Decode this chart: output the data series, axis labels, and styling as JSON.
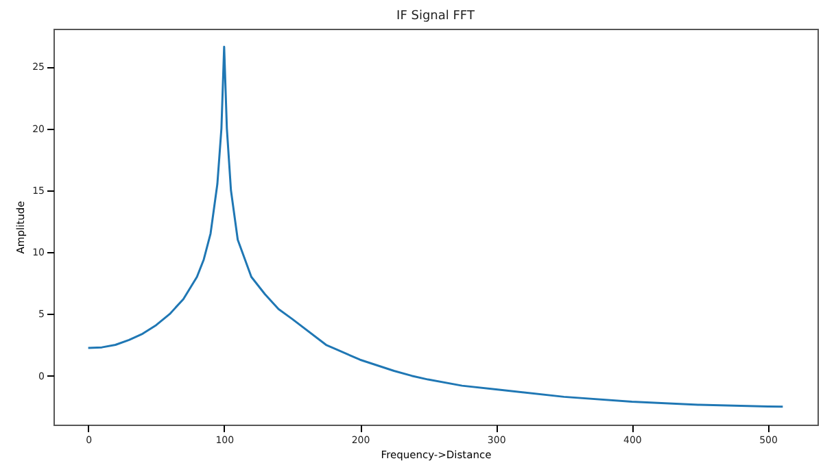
{
  "chart_data": {
    "type": "line",
    "title": "IF Signal FFT",
    "xlabel": "Frequency->Distance",
    "ylabel": "Amplitude",
    "x": [
      0,
      10,
      20,
      30,
      40,
      50,
      60,
      70,
      80,
      85,
      90,
      95,
      98,
      100,
      102,
      105,
      110,
      120,
      130,
      140,
      150,
      175,
      200,
      225,
      238,
      250,
      275,
      300,
      350,
      400,
      450,
      500,
      511
    ],
    "series": [
      {
        "color": "#1f77b4",
        "values": [
          2.25,
          2.3,
          2.5,
          2.9,
          3.4,
          4.1,
          5.0,
          6.2,
          8.0,
          9.4,
          11.5,
          15.5,
          20,
          26.6,
          20,
          15,
          11,
          8,
          6.6,
          5.4,
          4.6,
          2.5,
          1.3,
          0.4,
          0,
          -0.3,
          -0.8,
          -1.1,
          -1.7,
          -2.1,
          -2.35,
          -2.48,
          -2.5
        ]
      }
    ],
    "xlim": [
      -25.55,
      536.55
    ],
    "ylim": [
      -3.95,
      28.06
    ],
    "xticks": [
      0,
      100,
      200,
      300,
      400,
      500
    ],
    "yticks": [
      0,
      5,
      10,
      15,
      20,
      25
    ],
    "grid": false,
    "line_style": "solid"
  }
}
